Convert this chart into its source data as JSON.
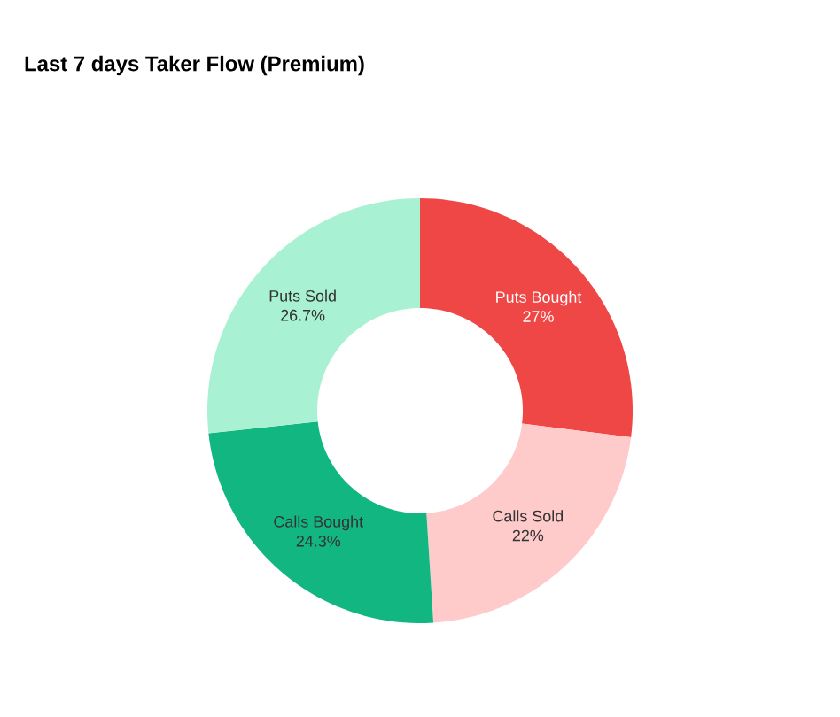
{
  "chart_data": {
    "type": "donut",
    "title": "Last 7 days Taker Flow (Premium)",
    "categories": [
      "Puts Bought",
      "Calls Sold",
      "Calls Bought",
      "Puts Sold"
    ],
    "values": [
      27,
      22,
      24.3,
      26.7
    ],
    "value_labels": [
      "27%",
      "22%",
      "24.3%",
      "26.7%"
    ],
    "colors": [
      "#ef4646",
      "#ffcaca",
      "#12b681",
      "#a8f1d2"
    ]
  }
}
